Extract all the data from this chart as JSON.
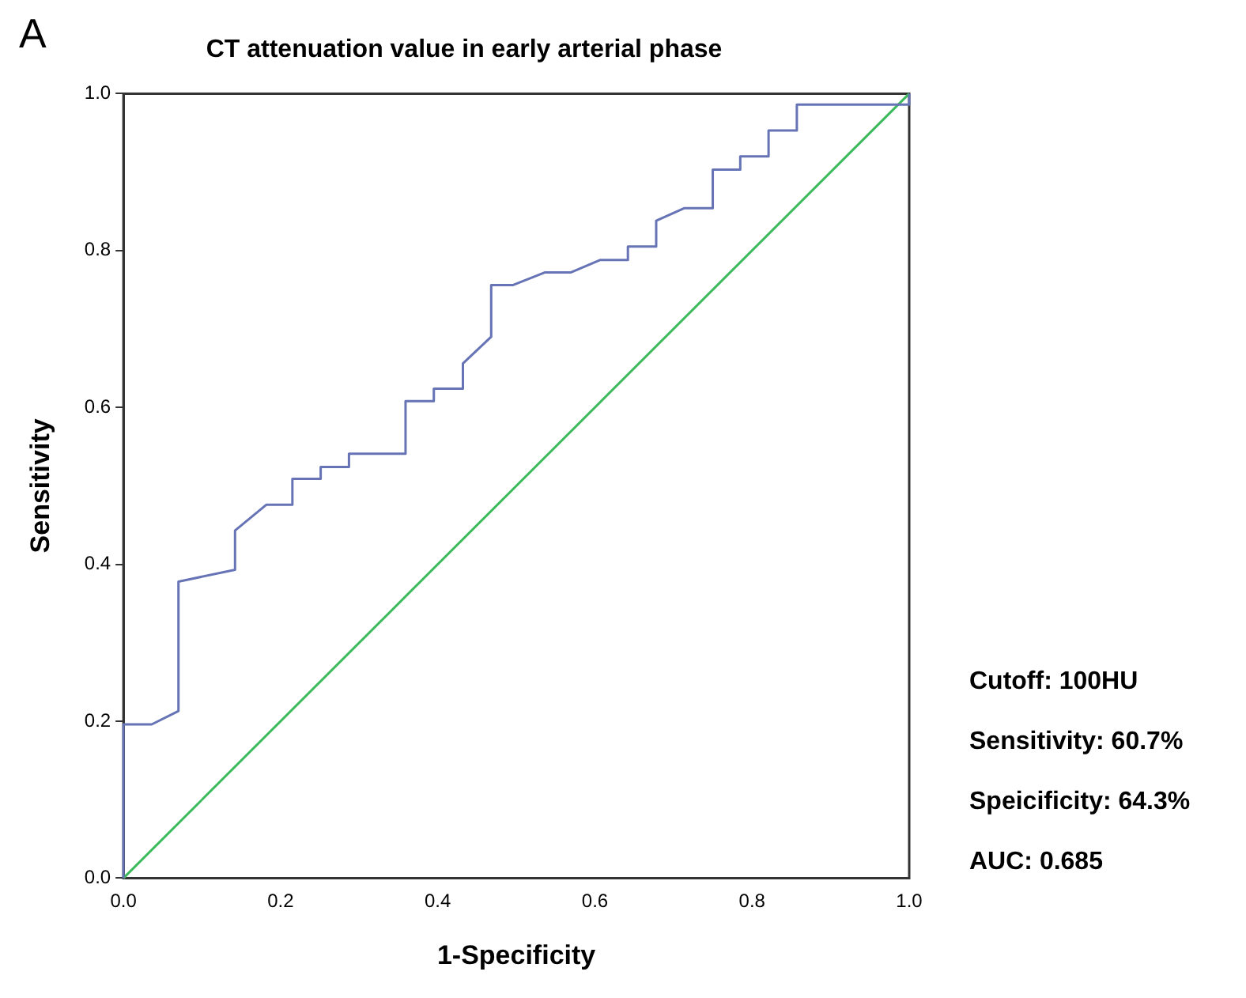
{
  "chart_data": {
    "type": "line",
    "title": "CT attenuation value in early arterial phase",
    "xlabel": "1-Specificity",
    "ylabel": "Sensitivity",
    "annotations": [
      "A",
      "Cutoff: 100HU",
      "Sensitivity: 60.7%",
      "Speicificity: 64.3%",
      "AUC: 0.685"
    ],
    "xlim": [
      0,
      1
    ],
    "ylim": [
      0,
      1
    ],
    "xticks": [
      {
        "value": 0,
        "label": "0.0"
      },
      {
        "value": 0.2,
        "label": "0.2"
      },
      {
        "value": 0.4,
        "label": "0.4"
      },
      {
        "value": 0.6,
        "label": "0.6"
      },
      {
        "value": 0.8,
        "label": "0.8"
      },
      {
        "value": 1,
        "label": "1.0"
      }
    ],
    "yticks": [
      {
        "value": 0,
        "label": "0.0"
      },
      {
        "value": 0.2,
        "label": "0.2"
      },
      {
        "value": 0.4,
        "label": "0.4"
      },
      {
        "value": 0.6,
        "label": "0.6"
      },
      {
        "value": 0.8,
        "label": "0.8"
      },
      {
        "value": 1,
        "label": "1.0"
      }
    ],
    "grid": false,
    "legend": false,
    "marker": "none",
    "line_style": "solid",
    "series": [
      {
        "color": "#6673b5",
        "x": [
          0,
          0,
          0.036,
          0.07,
          0.07,
          0.142,
          0.142,
          0.182,
          0.215,
          0.215,
          0.251,
          0.251,
          0.287,
          0.287,
          0.359,
          0.359,
          0.395,
          0.395,
          0.432,
          0.432,
          0.468,
          0.468,
          0.496,
          0.536,
          0.569,
          0.607,
          0.642,
          0.642,
          0.678,
          0.678,
          0.714,
          0.75,
          0.75,
          0.785,
          0.785,
          0.821,
          0.821,
          0.857,
          0.857,
          1,
          1
        ],
        "values": [
          0,
          0.196,
          0.196,
          0.213,
          0.378,
          0.393,
          0.443,
          0.476,
          0.476,
          0.509,
          0.509,
          0.524,
          0.524,
          0.541,
          0.541,
          0.608,
          0.608,
          0.624,
          0.624,
          0.656,
          0.69,
          0.756,
          0.756,
          0.772,
          0.772,
          0.788,
          0.788,
          0.805,
          0.805,
          0.838,
          0.854,
          0.854,
          0.903,
          0.903,
          0.92,
          0.92,
          0.953,
          0.953,
          0.986,
          0.986,
          1
        ]
      },
      {
        "color": "#3dbb5c",
        "x": [
          0,
          1
        ],
        "values": [
          0,
          1
        ]
      }
    ]
  }
}
